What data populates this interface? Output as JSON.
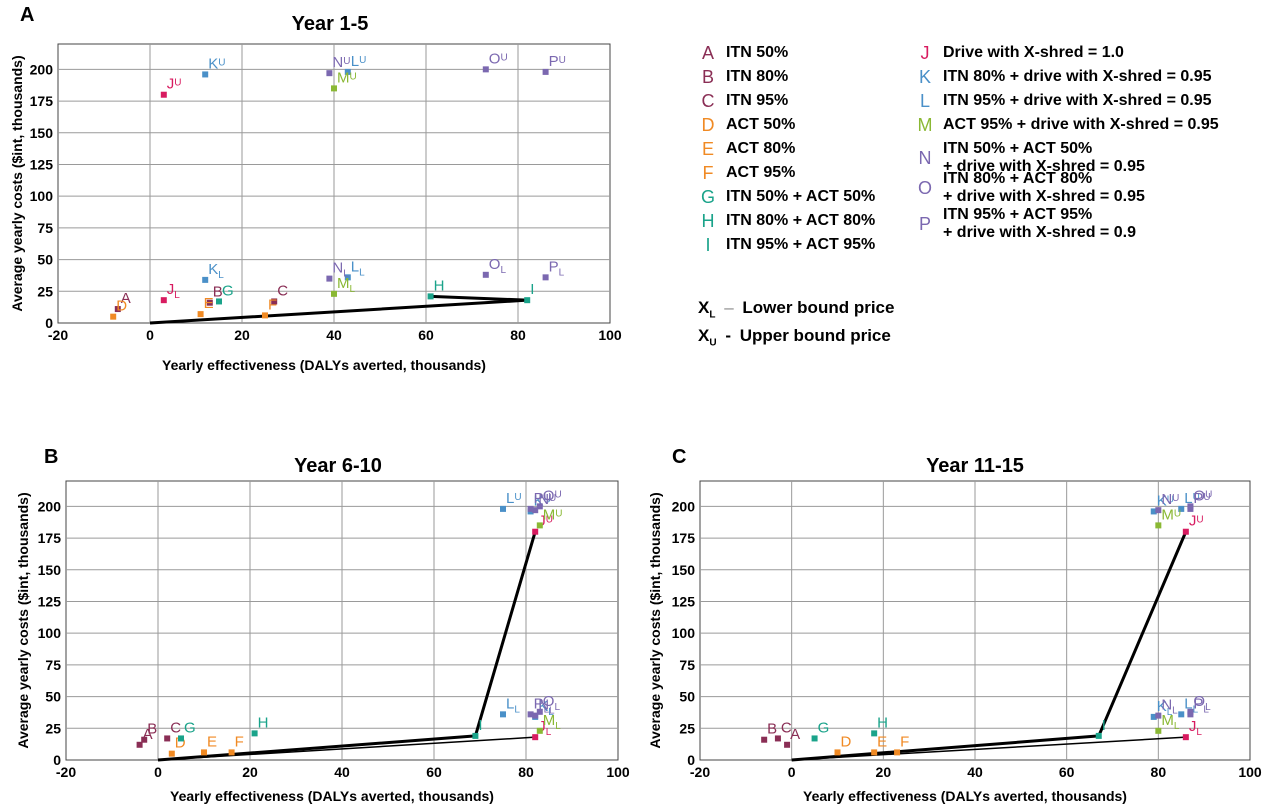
{
  "panels": {
    "A": "A",
    "B": "B",
    "C": "C"
  },
  "legend": [
    {
      "key": "A",
      "text": "ITN 50%",
      "color": "#8a2e55"
    },
    {
      "key": "B",
      "text": "ITN 80%",
      "color": "#8a2e55"
    },
    {
      "key": "C",
      "text": "ITN 95%",
      "color": "#8a2e55"
    },
    {
      "key": "D",
      "text": "ACT 50%",
      "color": "#f08a24"
    },
    {
      "key": "E",
      "text": "ACT 80%",
      "color": "#f08a24"
    },
    {
      "key": "F",
      "text": "ACT 95%",
      "color": "#f08a24"
    },
    {
      "key": "G",
      "text": "ITN 50% + ACT 50%",
      "color": "#1aa38a"
    },
    {
      "key": "H",
      "text": "ITN 80% + ACT 80%",
      "color": "#1aa38a"
    },
    {
      "key": "I",
      "text": "ITN 95% + ACT 95%",
      "color": "#1aa38a"
    },
    {
      "key": "J",
      "text": "Drive with X-shred = 1.0",
      "color": "#d81b60"
    },
    {
      "key": "K",
      "text": "ITN 80% + drive with X-shred = 0.95",
      "color": "#4a90c8"
    },
    {
      "key": "L",
      "text": "ITN 95% + drive with X-shred = 0.95",
      "color": "#4a90c8"
    },
    {
      "key": "M",
      "text": "ACT 95% + drive with X-shred = 0.95",
      "color": "#8ab834"
    },
    {
      "key": "N",
      "text": "ITN 50% + ACT 50%",
      "text2": "+ drive with X-shred = 0.95",
      "color": "#7b68b0"
    },
    {
      "key": "O",
      "text": "ITN 80% + ACT 80%",
      "text2": "+ drive with X-shred = 0.95",
      "color": "#7b68b0"
    },
    {
      "key": "P",
      "text": "ITN 95% + ACT 95%",
      "text2": "+ drive with X-shred = 0.9",
      "color": "#7b68b0"
    }
  ],
  "bounds": {
    "lower": {
      "sym": "X",
      "sub": "L",
      "dash": "–",
      "text": "Lower bound price"
    },
    "upper": {
      "sym": "X",
      "sub": "U",
      "dash": "-",
      "text": "Upper bound price"
    }
  },
  "chart_data": [
    {
      "type": "scatter",
      "title": "Year 1-5",
      "xlabel": "Yearly effectiveness (DALYs averted, thousands)",
      "ylabel": "Average yearly costs ($int, thousands)",
      "xlim": [
        -20,
        100
      ],
      "ylim": [
        0,
        220
      ],
      "xticks": [
        -20,
        0,
        20,
        40,
        60,
        80,
        100
      ],
      "yticks": [
        0,
        25,
        50,
        75,
        100,
        125,
        150,
        175,
        200
      ],
      "grid": true,
      "points": [
        {
          "key": "A",
          "sub": "",
          "x": -7,
          "y": 11,
          "color": "#8a2e55"
        },
        {
          "key": "B",
          "sub": "",
          "x": 13,
          "y": 16,
          "color": "#8a2e55"
        },
        {
          "key": "C",
          "sub": "",
          "x": 27,
          "y": 17,
          "color": "#8a2e55"
        },
        {
          "key": "D",
          "sub": "",
          "x": -8,
          "y": 5,
          "color": "#f08a24"
        },
        {
          "key": "E",
          "sub": "",
          "x": 11,
          "y": 7,
          "color": "#f08a24"
        },
        {
          "key": "F",
          "sub": "",
          "x": 25,
          "y": 6,
          "color": "#f08a24"
        },
        {
          "key": "G",
          "sub": "",
          "x": 15,
          "y": 17,
          "color": "#1aa38a"
        },
        {
          "key": "H",
          "sub": "",
          "x": 61,
          "y": 21,
          "color": "#1aa38a"
        },
        {
          "key": "I",
          "sub": "",
          "x": 82,
          "y": 18,
          "color": "#1aa38a"
        },
        {
          "key": "J",
          "sub": "L",
          "x": 3,
          "y": 18,
          "color": "#d81b60"
        },
        {
          "key": "J",
          "sub": "U",
          "x": 3,
          "y": 180,
          "color": "#d81b60"
        },
        {
          "key": "K",
          "sub": "L",
          "x": 12,
          "y": 34,
          "color": "#4a90c8"
        },
        {
          "key": "K",
          "sub": "U",
          "x": 12,
          "y": 196,
          "color": "#4a90c8"
        },
        {
          "key": "L",
          "sub": "L",
          "x": 43,
          "y": 36,
          "color": "#4a90c8"
        },
        {
          "key": "L",
          "sub": "U",
          "x": 43,
          "y": 198,
          "color": "#4a90c8"
        },
        {
          "key": "M",
          "sub": "L",
          "x": 40,
          "y": 23,
          "color": "#8ab834"
        },
        {
          "key": "M",
          "sub": "U",
          "x": 40,
          "y": 185,
          "color": "#8ab834"
        },
        {
          "key": "N",
          "sub": "L",
          "x": 39,
          "y": 35,
          "color": "#7b68b0"
        },
        {
          "key": "N",
          "sub": "U",
          "x": 39,
          "y": 197,
          "color": "#7b68b0"
        },
        {
          "key": "O",
          "sub": "L",
          "x": 73,
          "y": 38,
          "color": "#7b68b0"
        },
        {
          "key": "O",
          "sub": "U",
          "x": 73,
          "y": 200,
          "color": "#7b68b0"
        },
        {
          "key": "P",
          "sub": "L",
          "x": 86,
          "y": 36,
          "color": "#7b68b0"
        },
        {
          "key": "P",
          "sub": "U",
          "x": 86,
          "y": 198,
          "color": "#7b68b0"
        }
      ],
      "frontier": [
        [
          0,
          0
        ],
        [
          82,
          18
        ],
        [
          61,
          21
        ],
        [
          82,
          18
        ]
      ],
      "frontier_thin": []
    },
    {
      "type": "scatter",
      "title": "Year 6-10",
      "xlabel": "Yearly effectiveness (DALYs averted, thousands)",
      "ylabel": "Average yearly costs ($int, thousands)",
      "xlim": [
        -20,
        100
      ],
      "ylim": [
        0,
        220
      ],
      "xticks": [
        -20,
        0,
        20,
        40,
        60,
        80,
        100
      ],
      "yticks": [
        0,
        25,
        50,
        75,
        100,
        125,
        150,
        175,
        200
      ],
      "grid": true,
      "points": [
        {
          "key": "A",
          "sub": "",
          "x": -4,
          "y": 12,
          "color": "#8a2e55"
        },
        {
          "key": "B",
          "sub": "",
          "x": -3,
          "y": 16,
          "color": "#8a2e55"
        },
        {
          "key": "C",
          "sub": "",
          "x": 2,
          "y": 17,
          "color": "#8a2e55"
        },
        {
          "key": "D",
          "sub": "",
          "x": 3,
          "y": 5,
          "color": "#f08a24"
        },
        {
          "key": "E",
          "sub": "",
          "x": 10,
          "y": 6,
          "color": "#f08a24"
        },
        {
          "key": "F",
          "sub": "",
          "x": 16,
          "y": 6,
          "color": "#f08a24"
        },
        {
          "key": "G",
          "sub": "",
          "x": 5,
          "y": 17,
          "color": "#1aa38a"
        },
        {
          "key": "H",
          "sub": "",
          "x": 21,
          "y": 21,
          "color": "#1aa38a"
        },
        {
          "key": "I",
          "sub": "",
          "x": 69,
          "y": 19,
          "color": "#1aa38a"
        },
        {
          "key": "J",
          "sub": "L",
          "x": 82,
          "y": 18,
          "color": "#d81b60"
        },
        {
          "key": "J",
          "sub": "U",
          "x": 82,
          "y": 180,
          "color": "#d81b60"
        },
        {
          "key": "K",
          "sub": "L",
          "x": 82,
          "y": 34,
          "color": "#4a90c8"
        },
        {
          "key": "K",
          "sub": "U",
          "x": 81,
          "y": 196,
          "color": "#4a90c8"
        },
        {
          "key": "L",
          "sub": "L",
          "x": 75,
          "y": 36,
          "color": "#4a90c8"
        },
        {
          "key": "L",
          "sub": "U",
          "x": 75,
          "y": 198,
          "color": "#4a90c8"
        },
        {
          "key": "M",
          "sub": "L",
          "x": 83,
          "y": 23,
          "color": "#8ab834"
        },
        {
          "key": "M",
          "sub": "U",
          "x": 83,
          "y": 185,
          "color": "#8ab834"
        },
        {
          "key": "N",
          "sub": "L",
          "x": 82,
          "y": 35,
          "color": "#7b68b0"
        },
        {
          "key": "N",
          "sub": "U",
          "x": 82,
          "y": 197,
          "color": "#7b68b0"
        },
        {
          "key": "O",
          "sub": "L",
          "x": 83,
          "y": 38,
          "color": "#7b68b0"
        },
        {
          "key": "O",
          "sub": "U",
          "x": 83,
          "y": 200,
          "color": "#7b68b0"
        },
        {
          "key": "P",
          "sub": "L",
          "x": 81,
          "y": 36,
          "color": "#7b68b0"
        },
        {
          "key": "P",
          "sub": "U",
          "x": 81,
          "y": 198,
          "color": "#7b68b0"
        }
      ],
      "frontier": [
        [
          0,
          0
        ],
        [
          69,
          19
        ],
        [
          82,
          180
        ]
      ],
      "frontier_thin": [
        [
          0,
          0
        ],
        [
          82,
          18
        ]
      ]
    },
    {
      "type": "scatter",
      "title": "Year 11-15",
      "xlabel": "Yearly effectiveness (DALYs averted, thousands)",
      "ylabel": "Average yearly costs ($int, thousands)",
      "xlim": [
        -20,
        100
      ],
      "ylim": [
        0,
        220
      ],
      "xticks": [
        -20,
        0,
        20,
        40,
        60,
        80,
        100
      ],
      "yticks": [
        0,
        25,
        50,
        75,
        100,
        125,
        150,
        175,
        200
      ],
      "grid": true,
      "points": [
        {
          "key": "A",
          "sub": "",
          "x": -1,
          "y": 12,
          "color": "#8a2e55"
        },
        {
          "key": "B",
          "sub": "",
          "x": -6,
          "y": 16,
          "color": "#8a2e55"
        },
        {
          "key": "C",
          "sub": "",
          "x": -3,
          "y": 17,
          "color": "#8a2e55"
        },
        {
          "key": "D",
          "sub": "",
          "x": 10,
          "y": 6,
          "color": "#f08a24"
        },
        {
          "key": "E",
          "sub": "",
          "x": 18,
          "y": 6,
          "color": "#f08a24"
        },
        {
          "key": "F",
          "sub": "",
          "x": 23,
          "y": 6,
          "color": "#f08a24"
        },
        {
          "key": "G",
          "sub": "",
          "x": 5,
          "y": 17,
          "color": "#1aa38a"
        },
        {
          "key": "H",
          "sub": "",
          "x": 18,
          "y": 21,
          "color": "#1aa38a"
        },
        {
          "key": "I",
          "sub": "",
          "x": 67,
          "y": 19,
          "color": "#1aa38a"
        },
        {
          "key": "J",
          "sub": "L",
          "x": 86,
          "y": 18,
          "color": "#d81b60"
        },
        {
          "key": "J",
          "sub": "U",
          "x": 86,
          "y": 180,
          "color": "#d81b60"
        },
        {
          "key": "K",
          "sub": "L",
          "x": 79,
          "y": 34,
          "color": "#4a90c8"
        },
        {
          "key": "K",
          "sub": "U",
          "x": 79,
          "y": 196,
          "color": "#4a90c8"
        },
        {
          "key": "L",
          "sub": "L",
          "x": 85,
          "y": 36,
          "color": "#4a90c8"
        },
        {
          "key": "L",
          "sub": "U",
          "x": 85,
          "y": 198,
          "color": "#4a90c8"
        },
        {
          "key": "M",
          "sub": "L",
          "x": 80,
          "y": 23,
          "color": "#8ab834"
        },
        {
          "key": "M",
          "sub": "U",
          "x": 80,
          "y": 185,
          "color": "#8ab834"
        },
        {
          "key": "N",
          "sub": "L",
          "x": 80,
          "y": 35,
          "color": "#7b68b0"
        },
        {
          "key": "N",
          "sub": "U",
          "x": 80,
          "y": 197,
          "color": "#7b68b0"
        },
        {
          "key": "O",
          "sub": "L",
          "x": 87,
          "y": 38,
          "color": "#7b68b0"
        },
        {
          "key": "O",
          "sub": "U",
          "x": 87,
          "y": 200,
          "color": "#7b68b0"
        },
        {
          "key": "P",
          "sub": "L",
          "x": 87,
          "y": 36,
          "color": "#7b68b0"
        },
        {
          "key": "P",
          "sub": "U",
          "x": 87,
          "y": 198,
          "color": "#7b68b0"
        }
      ],
      "frontier": [
        [
          0,
          0
        ],
        [
          67,
          19
        ],
        [
          86,
          180
        ]
      ],
      "frontier_thin": [
        [
          0,
          0
        ],
        [
          86,
          18
        ]
      ]
    }
  ]
}
